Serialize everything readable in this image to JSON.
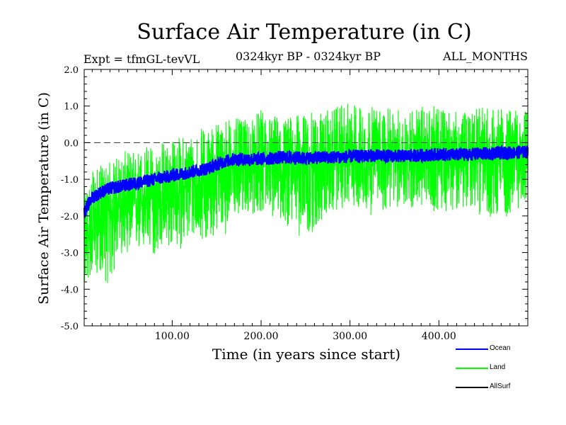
{
  "chart_data": {
    "type": "line",
    "title": "Surface Air Temperature (in C)",
    "subtitle_left": "Expt = tfmGL-tevVL",
    "subtitle_center": "0324kyr BP - 0324kyr BP",
    "subtitle_right": "ALL_MONTHS",
    "xlabel": "Time (in years since start)",
    "ylabel": "Surface Air Temperature (in C)",
    "xlim": [
      1,
      500
    ],
    "ylim": [
      -5.0,
      2.0
    ],
    "x_ticks": [
      100,
      200,
      300,
      400
    ],
    "x_tick_labels": [
      "100.00",
      "200.00",
      "300.00",
      "400.00"
    ],
    "y_ticks": [
      -5.0,
      -4.0,
      -3.0,
      -2.0,
      -1.0,
      0.0,
      1.0,
      2.0
    ],
    "y_tick_labels": [
      "-5.0",
      "-4.0",
      "-3.0",
      "-2.0",
      "-1.0",
      "0.0",
      "1.0",
      "2.0"
    ],
    "reference_line": {
      "y": 0.0,
      "style": "dashed"
    },
    "grid": false,
    "legend_position": "below-right",
    "series": [
      {
        "name": "Land",
        "color": "#00ff00",
        "x": [
          1,
          10,
          20,
          30,
          40,
          50,
          60,
          70,
          80,
          90,
          100,
          110,
          120,
          130,
          140,
          150,
          160,
          170,
          180,
          190,
          200,
          225,
          250,
          275,
          300,
          325,
          350,
          375,
          400,
          425,
          450,
          475,
          500
        ],
        "mean": [
          -2.9,
          -2.2,
          -2.0,
          -1.9,
          -1.8,
          -1.75,
          -1.65,
          -1.6,
          -1.55,
          -1.45,
          -1.4,
          -1.3,
          -1.2,
          -1.1,
          -1.0,
          -0.85,
          -0.75,
          -0.65,
          -0.6,
          -0.6,
          -0.55,
          -0.55,
          -0.5,
          -0.55,
          -0.45,
          -0.4,
          -0.45,
          -0.4,
          -0.35,
          -0.4,
          -0.35,
          -0.3,
          -0.25
        ],
        "min": [
          -4.0,
          -3.6,
          -3.6,
          -4.0,
          -3.1,
          -3.0,
          -3.0,
          -3.0,
          -3.1,
          -2.9,
          -2.9,
          -2.9,
          -2.7,
          -2.6,
          -2.7,
          -2.5,
          -2.5,
          -2.2,
          -1.9,
          -2.0,
          -1.9,
          -2.2,
          -2.7,
          -2.0,
          -1.7,
          -2.0,
          -1.8,
          -1.8,
          -1.9,
          -1.8,
          -2.0,
          -2.1,
          -1.6
        ],
        "max": [
          -1.2,
          -0.8,
          -0.6,
          -0.5,
          -0.3,
          -0.2,
          -0.2,
          0.0,
          -0.1,
          0.1,
          0.1,
          0.2,
          0.3,
          0.4,
          0.4,
          0.6,
          0.7,
          0.7,
          0.6,
          0.7,
          0.9,
          0.7,
          0.8,
          0.9,
          1.1,
          1.0,
          0.9,
          1.0,
          1.0,
          0.8,
          1.0,
          0.9,
          0.9
        ]
      },
      {
        "name": "Ocean",
        "color": "#0000ff",
        "x": [
          1,
          10,
          20,
          30,
          40,
          50,
          60,
          70,
          80,
          90,
          100,
          110,
          120,
          130,
          140,
          150,
          160,
          170,
          180,
          190,
          200,
          225,
          250,
          275,
          300,
          325,
          350,
          375,
          400,
          425,
          450,
          475,
          500
        ],
        "mean": [
          -1.9,
          -1.5,
          -1.35,
          -1.25,
          -1.2,
          -1.15,
          -1.1,
          -1.05,
          -1.0,
          -0.95,
          -0.9,
          -0.85,
          -0.8,
          -0.75,
          -0.7,
          -0.6,
          -0.5,
          -0.45,
          -0.45,
          -0.45,
          -0.45,
          -0.4,
          -0.42,
          -0.4,
          -0.38,
          -0.35,
          -0.37,
          -0.35,
          -0.32,
          -0.33,
          -0.3,
          -0.28,
          -0.25
        ]
      },
      {
        "name": "AllSurf",
        "color": "#000000",
        "x": [],
        "mean": []
      }
    ]
  },
  "legend": [
    {
      "name": "Ocean",
      "color": "#0000ff"
    },
    {
      "name": "Land",
      "color": "#00ff00"
    },
    {
      "name": "AllSurf",
      "color": "#000000"
    }
  ]
}
